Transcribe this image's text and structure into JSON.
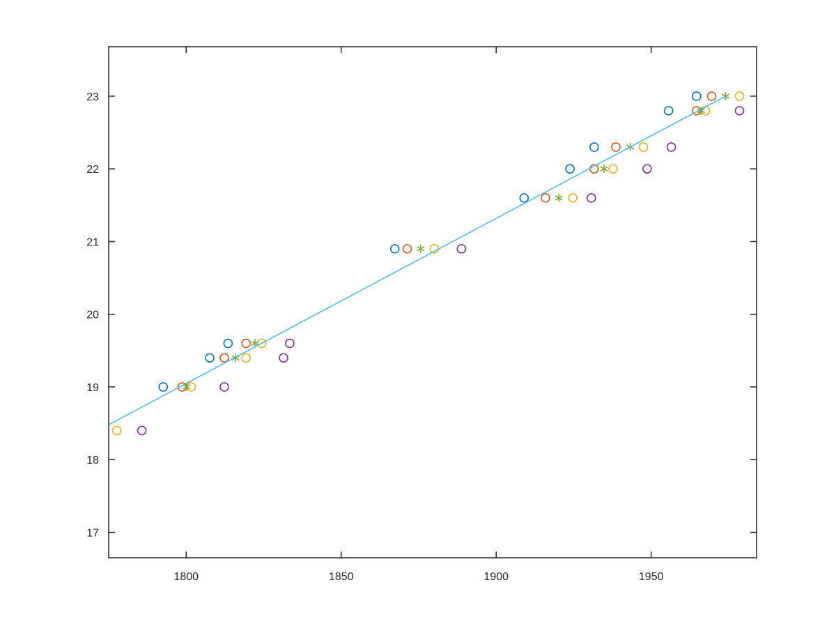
{
  "chart_data": {
    "type": "scatter",
    "title": "",
    "xlabel": "",
    "ylabel": "",
    "xlim": [
      1775,
      1984
    ],
    "ylim": [
      16.65,
      23.68
    ],
    "xticks": [
      1800,
      1850,
      1900,
      1950
    ],
    "yticks": [
      17,
      18,
      19,
      20,
      21,
      22,
      23
    ],
    "grid": false,
    "box": true,
    "series": [
      {
        "marker": "circle",
        "color": "#0072BD",
        "x": [
          1792.6,
          1807.6,
          1813.5,
          1867.3,
          1909.0,
          1923.8,
          1931.6,
          1955.6,
          1964.6
        ],
        "y": [
          19.0,
          19.4,
          19.6,
          20.9,
          21.6,
          22.0,
          22.3,
          22.8,
          23.0
        ]
      },
      {
        "marker": "circle",
        "color": "#D95319",
        "x": [
          1798.7,
          1812.3,
          1819.3,
          1871.3,
          1915.9,
          1931.6,
          1938.6,
          1964.6,
          1969.5
        ],
        "y": [
          19.0,
          19.4,
          19.6,
          20.9,
          21.6,
          22.0,
          22.3,
          22.8,
          23.0
        ]
      },
      {
        "marker": "circle",
        "color": "#EDB120",
        "x": [
          1777.6,
          1801.6,
          1819.3,
          1824.4,
          1880.0,
          1924.7,
          1937.7,
          1947.5,
          1967.5,
          1978.5
        ],
        "y": [
          18.4,
          19.0,
          19.4,
          19.6,
          20.9,
          21.6,
          22.0,
          22.3,
          22.8,
          23.0
        ]
      },
      {
        "marker": "asterisk",
        "color": "#77AC30",
        "x": [
          1800.2,
          1815.9,
          1822.2,
          1875.6,
          1920.2,
          1934.8,
          1943.3,
          1966.1,
          1974.0
        ],
        "y": [
          19.0,
          19.4,
          19.6,
          20.9,
          21.6,
          22.0,
          22.3,
          22.8,
          23.0
        ]
      },
      {
        "marker": "circle",
        "color": "#7E2F8E",
        "x": [
          1785.7,
          1812.3,
          1831.4,
          1833.4,
          1888.8,
          1930.7,
          1948.7,
          1956.5,
          1978.5
        ],
        "y": [
          18.4,
          19.0,
          19.4,
          19.6,
          20.9,
          21.6,
          22.0,
          22.3,
          22.8
        ]
      },
      {
        "marker": "line",
        "color": "#4DBEEE",
        "x": [
          1775.0,
          1974.0
        ],
        "y": [
          18.48,
          23.0
        ]
      }
    ]
  }
}
